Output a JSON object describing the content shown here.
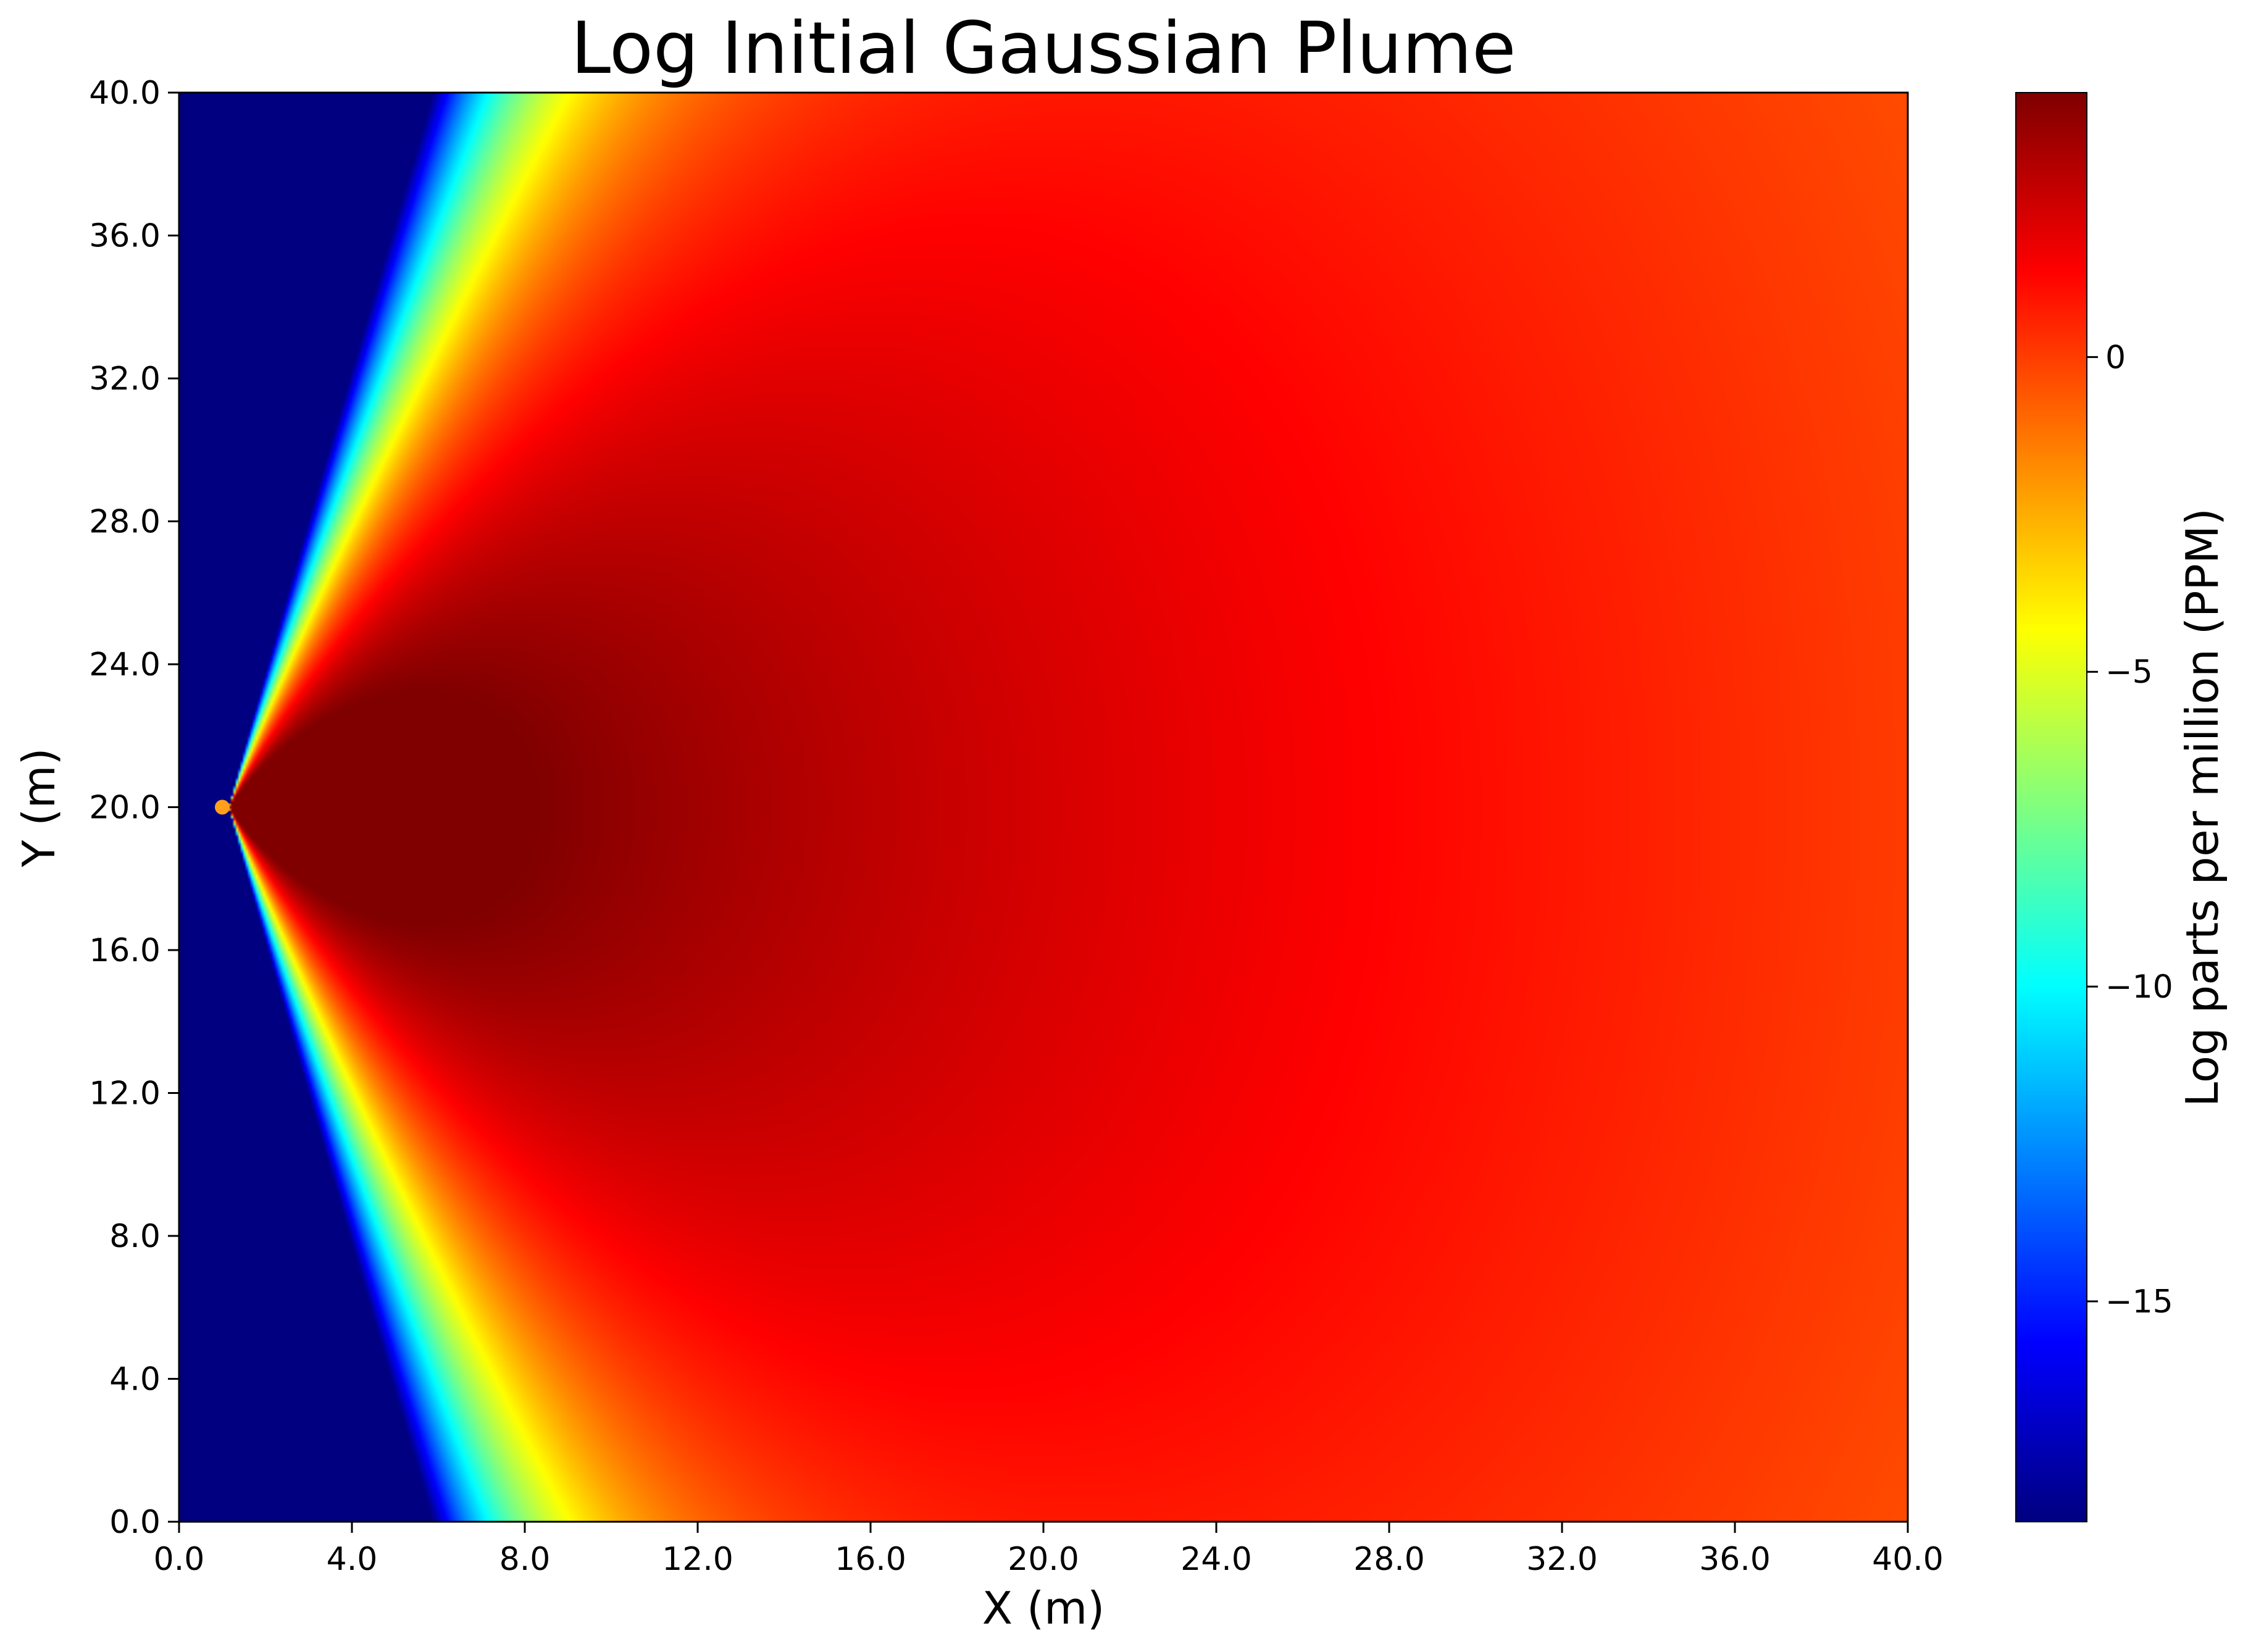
{
  "chart_data": {
    "type": "heatmap",
    "title": "Log Initial Gaussian Plume",
    "xlabel": "X (m)",
    "ylabel": "Y (m)",
    "xlim": [
      0,
      40
    ],
    "ylim": [
      0,
      40
    ],
    "xticks": [
      "0.0",
      "4.0",
      "8.0",
      "12.0",
      "16.0",
      "20.0",
      "24.0",
      "28.0",
      "32.0",
      "36.0",
      "40.0"
    ],
    "yticks": [
      "0.0",
      "4.0",
      "8.0",
      "12.0",
      "16.0",
      "20.0",
      "24.0",
      "28.0",
      "32.0",
      "36.0",
      "40.0"
    ],
    "source": {
      "x": 1.0,
      "y": 20.0,
      "color": "#ff9f1c"
    },
    "plume_field": {
      "plotted_x_extent": 40,
      "center_y": 20,
      "peak_x": 3.8
    },
    "colorbar": {
      "label": "Log parts per million (PPM)",
      "colormap": "jet",
      "range": [
        -18.5,
        4.2
      ],
      "ticks": [
        "0",
        "−5",
        "−10",
        "−15"
      ],
      "tick_values": [
        0,
        -5,
        -10,
        -15
      ]
    }
  }
}
